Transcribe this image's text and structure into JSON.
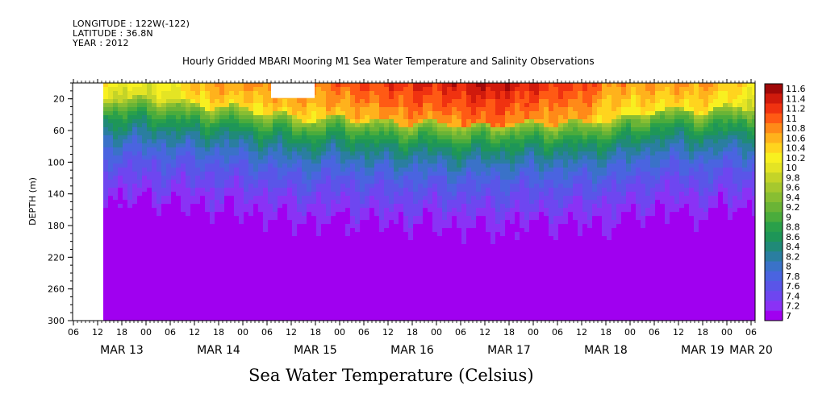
{
  "meta": {
    "longitude": "LONGITUDE : 122W(-122)",
    "latitude": "LATITUDE : 36.8N",
    "year": "YEAR : 2012"
  },
  "chart_data": {
    "type": "heatmap",
    "title": "Hourly Gridded MBARI Mooring M1 Sea Water Temperature and Salinity Observations",
    "colorbar_label": "Sea Water Temperature (Celsius)",
    "ylabel": "DEPTH (m)",
    "ylim": [
      300,
      0
    ],
    "y_ticks": [
      20,
      60,
      100,
      140,
      180,
      220,
      260,
      300
    ],
    "x_hour_ticks": [
      "06",
      "12",
      "18",
      "00",
      "06",
      "12",
      "18",
      "00",
      "06",
      "12",
      "18",
      "00",
      "06",
      "12",
      "18",
      "00",
      "06",
      "12",
      "18",
      "00",
      "06",
      "12",
      "18",
      "00",
      "06",
      "12",
      "18",
      "00",
      "06"
    ],
    "x_date_labels": [
      {
        "label": "MAR 13",
        "tick": 2
      },
      {
        "label": "MAR 14",
        "tick": 6
      },
      {
        "label": "MAR 15",
        "tick": 10
      },
      {
        "label": "MAR 16",
        "tick": 14
      },
      {
        "label": "MAR 17",
        "tick": 18
      },
      {
        "label": "MAR 18",
        "tick": 22
      },
      {
        "label": "MAR 19",
        "tick": 26
      },
      {
        "label": "MAR 20",
        "tick": 28
      }
    ],
    "levels": [
      "7",
      "7.2",
      "7.4",
      "7.6",
      "7.8",
      "8",
      "8.2",
      "8.4",
      "8.6",
      "8.8",
      "9",
      "9.2",
      "9.4",
      "9.6",
      "9.8",
      "10",
      "10.2",
      "10.4",
      "10.6",
      "10.8",
      "11",
      "11.2",
      "11.4",
      "11.6"
    ],
    "colors": [
      "#a000f0",
      "#8a32f5",
      "#6e46f0",
      "#5a55e8",
      "#4a64e0",
      "#3a72c8",
      "#2a7ea0",
      "#208a78",
      "#1e9658",
      "#2aa04a",
      "#4aac3c",
      "#6ab436",
      "#88be32",
      "#a6c82e",
      "#c4d428",
      "#e4e424",
      "#f8f020",
      "#ffd41e",
      "#ffb21c",
      "#ff8a18",
      "#ff5a14",
      "#f03210",
      "#d01a0c",
      "#a00808"
    ],
    "data_start": "MAR 13 12:00",
    "missing_region": {
      "from": "MAR 15 06:00",
      "to": "MAR 15 18:00",
      "depth": [
        10,
        20
      ]
    },
    "profiles": [
      {
        "t": "MAR 13 12",
        "mld": 18,
        "surf": 10.3
      },
      {
        "t": "MAR 13 18",
        "mld": 22,
        "surf": 10.2
      },
      {
        "t": "MAR 14 00",
        "mld": 20,
        "surf": 10.2
      },
      {
        "t": "MAR 14 06",
        "mld": 25,
        "surf": 10.3
      },
      {
        "t": "MAR 14 12",
        "mld": 28,
        "surf": 10.7
      },
      {
        "t": "MAR 14 18",
        "mld": 30,
        "surf": 10.8
      },
      {
        "t": "MAR 15 00",
        "mld": 32,
        "surf": 10.8
      },
      {
        "t": "MAR 15 06",
        "mld": 38,
        "surf": 10.9
      },
      {
        "t": "MAR 15 12",
        "mld": 44,
        "surf": 11.0
      },
      {
        "t": "MAR 15 18",
        "mld": 46,
        "surf": 11.0
      },
      {
        "t": "MAR 16 00",
        "mld": 42,
        "surf": 11.1
      },
      {
        "t": "MAR 16 06",
        "mld": 48,
        "surf": 11.2
      },
      {
        "t": "MAR 16 12",
        "mld": 50,
        "surf": 11.3
      },
      {
        "t": "MAR 16 18",
        "mld": 50,
        "surf": 11.4
      },
      {
        "t": "MAR 17 00",
        "mld": 52,
        "surf": 11.4
      },
      {
        "t": "MAR 17 06",
        "mld": 54,
        "surf": 11.5
      },
      {
        "t": "MAR 17 12",
        "mld": 54,
        "surf": 11.6
      },
      {
        "t": "MAR 17 18",
        "mld": 52,
        "surf": 11.5
      },
      {
        "t": "MAR 18 00",
        "mld": 52,
        "surf": 11.4
      },
      {
        "t": "MAR 18 06",
        "mld": 50,
        "surf": 11.3
      },
      {
        "t": "MAR 18 12",
        "mld": 52,
        "surf": 11.3
      },
      {
        "t": "MAR 18 18",
        "mld": 46,
        "surf": 10.9
      },
      {
        "t": "MAR 19 00",
        "mld": 44,
        "surf": 10.8
      },
      {
        "t": "MAR 19 06",
        "mld": 32,
        "surf": 10.8
      },
      {
        "t": "MAR 19 12",
        "mld": 34,
        "surf": 10.8
      },
      {
        "t": "MAR 19 18",
        "mld": 36,
        "surf": 10.8
      },
      {
        "t": "MAR 20 00",
        "mld": 32,
        "surf": 10.6
      },
      {
        "t": "MAR 20 06",
        "mld": 30,
        "surf": 10.4
      }
    ]
  }
}
